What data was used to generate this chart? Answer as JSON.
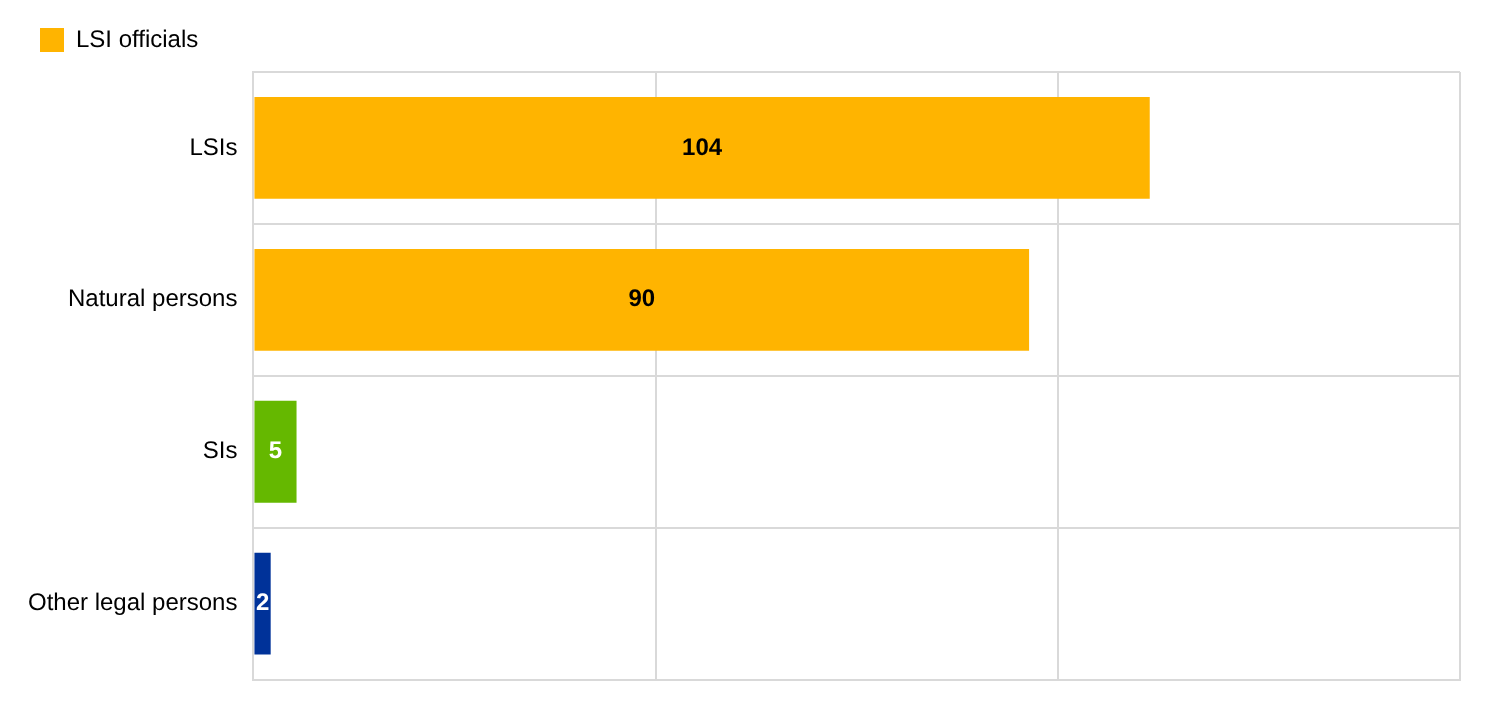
{
  "chart_data": {
    "type": "bar",
    "orientation": "horizontal",
    "stacked": true,
    "categories": [
      "LSIs",
      "Natural persons",
      "SIs",
      "Other legal persons"
    ],
    "series": [
      {
        "colors": [
          "#ffb400",
          null,
          "#65b800",
          "#003299"
        ],
        "values": [
          104,
          null,
          5,
          2
        ]
      },
      {
        "name": "LSI officials",
        "color": "#ffb400",
        "values": [
          null,
          90,
          null,
          null
        ]
      }
    ],
    "data_labels": true,
    "grid": true,
    "tick_labels": "y",
    "legend": "top left"
  }
}
